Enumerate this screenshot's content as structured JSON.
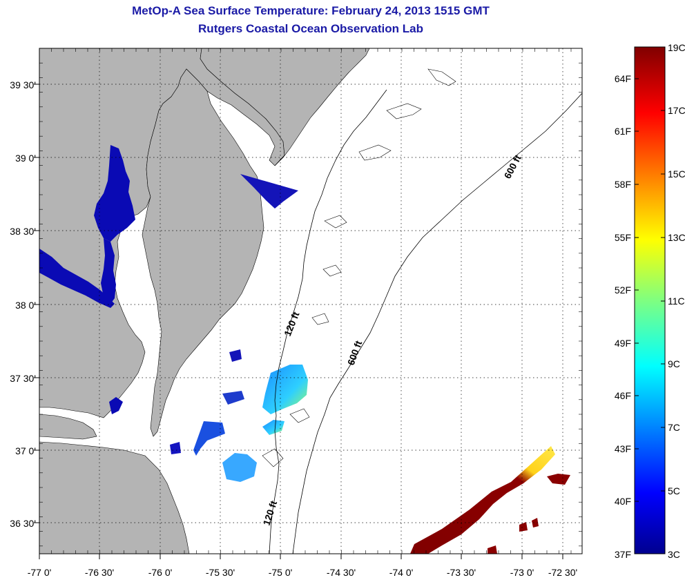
{
  "header": {
    "title_line1": "MetOp-A Sea Surface Temperature:  February 24, 2013 1515 GMT",
    "title_line2": "Rutgers Coastal Ocean Observation Lab"
  },
  "map": {
    "lon_labels": [
      "-77 0'",
      "-76 30'",
      "-76 0'",
      "-75 30'",
      "-75 0'",
      "-74 30'",
      "-74 0'",
      "-73 30'",
      "-73 0'",
      "-72 30'"
    ],
    "lat_labels": [
      "39 30'",
      "39 0'",
      "38 30'",
      "38 0'",
      "37 30'",
      "37 0'",
      "36 30'"
    ],
    "contour_labels": [
      "600 ft",
      "600 ft",
      "120 ft",
      "120 ft"
    ],
    "land_color": "#b4b4b4",
    "water_color": "#ffffff",
    "grid_style": "dotted"
  },
  "colorbar": {
    "celsius_labels": [
      "19C",
      "17C",
      "15C",
      "13C",
      "11C",
      "9C",
      "7C",
      "5C",
      "3C"
    ],
    "fahrenheit_labels": [
      "64F",
      "61F",
      "58F",
      "55F",
      "52F",
      "49F",
      "46F",
      "43F",
      "40F",
      "37F"
    ],
    "colormap": "jet",
    "min_c": 3,
    "max_c": 19
  }
}
